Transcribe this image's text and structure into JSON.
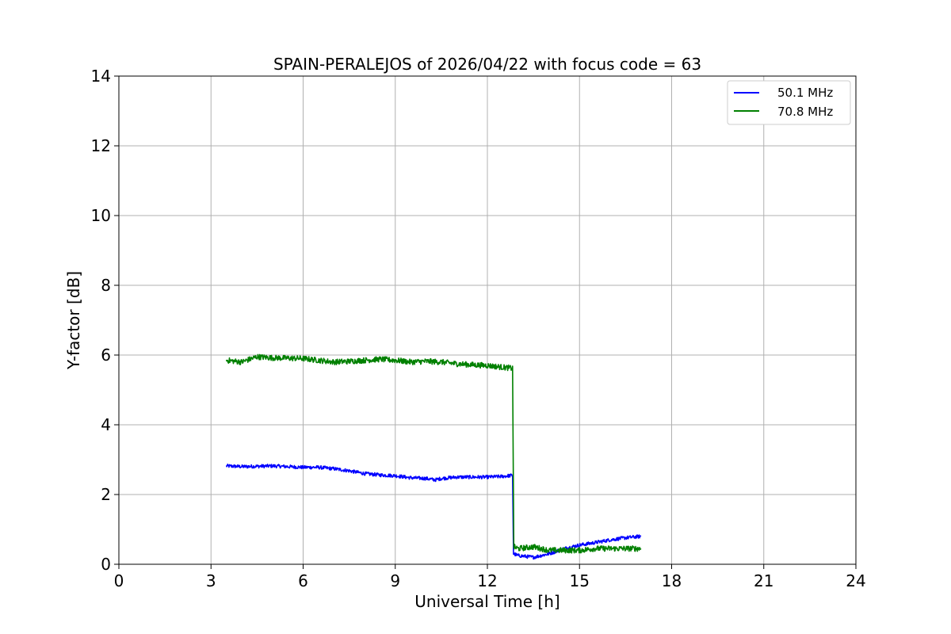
{
  "chart_data": {
    "type": "line",
    "title": "SPAIN-PERALEJOS of 2026/04/22 with focus code = 63",
    "xlabel": "Universal Time [h]",
    "ylabel": "Y-factor [dB]",
    "xlim": [
      0,
      24
    ],
    "ylim": [
      0,
      14
    ],
    "xticks": [
      "0",
      "3",
      "6",
      "9",
      "12",
      "15",
      "18",
      "21",
      "24"
    ],
    "yticks": [
      "0",
      "2",
      "4",
      "6",
      "8",
      "10",
      "12",
      "14"
    ],
    "grid": true,
    "legend_position": "top-right",
    "series": [
      {
        "name": "50.1 MHz",
        "color": "#0000ff",
        "noise": 0.05,
        "points": [
          [
            3.5,
            2.82
          ],
          [
            4.0,
            2.8
          ],
          [
            5.0,
            2.82
          ],
          [
            6.0,
            2.78
          ],
          [
            6.5,
            2.78
          ],
          [
            7.0,
            2.74
          ],
          [
            7.5,
            2.68
          ],
          [
            8.0,
            2.6
          ],
          [
            8.5,
            2.56
          ],
          [
            9.0,
            2.54
          ],
          [
            9.5,
            2.48
          ],
          [
            10.0,
            2.46
          ],
          [
            10.3,
            2.42
          ],
          [
            10.5,
            2.46
          ],
          [
            11.0,
            2.5
          ],
          [
            11.5,
            2.5
          ],
          [
            12.0,
            2.5
          ],
          [
            12.5,
            2.52
          ],
          [
            12.82,
            2.55
          ],
          [
            12.85,
            0.3
          ],
          [
            13.0,
            0.25
          ],
          [
            13.5,
            0.2
          ],
          [
            14.0,
            0.3
          ],
          [
            14.5,
            0.45
          ],
          [
            15.0,
            0.55
          ],
          [
            15.5,
            0.62
          ],
          [
            16.0,
            0.7
          ],
          [
            16.5,
            0.76
          ],
          [
            17.0,
            0.8
          ]
        ]
      },
      {
        "name": "70.8 MHz",
        "color": "#008000",
        "noise": 0.08,
        "points": [
          [
            3.5,
            5.85
          ],
          [
            4.0,
            5.8
          ],
          [
            4.5,
            5.95
          ],
          [
            5.0,
            5.92
          ],
          [
            6.0,
            5.9
          ],
          [
            6.5,
            5.85
          ],
          [
            7.0,
            5.8
          ],
          [
            7.5,
            5.82
          ],
          [
            8.0,
            5.85
          ],
          [
            8.5,
            5.88
          ],
          [
            9.0,
            5.85
          ],
          [
            9.5,
            5.8
          ],
          [
            10.0,
            5.82
          ],
          [
            10.5,
            5.8
          ],
          [
            11.0,
            5.75
          ],
          [
            11.5,
            5.72
          ],
          [
            12.0,
            5.7
          ],
          [
            12.5,
            5.65
          ],
          [
            12.82,
            5.62
          ],
          [
            12.86,
            0.5
          ],
          [
            13.0,
            0.45
          ],
          [
            13.5,
            0.5
          ],
          [
            14.0,
            0.4
          ],
          [
            14.5,
            0.4
          ],
          [
            15.0,
            0.4
          ],
          [
            15.5,
            0.45
          ],
          [
            16.0,
            0.45
          ],
          [
            16.5,
            0.45
          ],
          [
            17.0,
            0.45
          ]
        ]
      }
    ]
  }
}
